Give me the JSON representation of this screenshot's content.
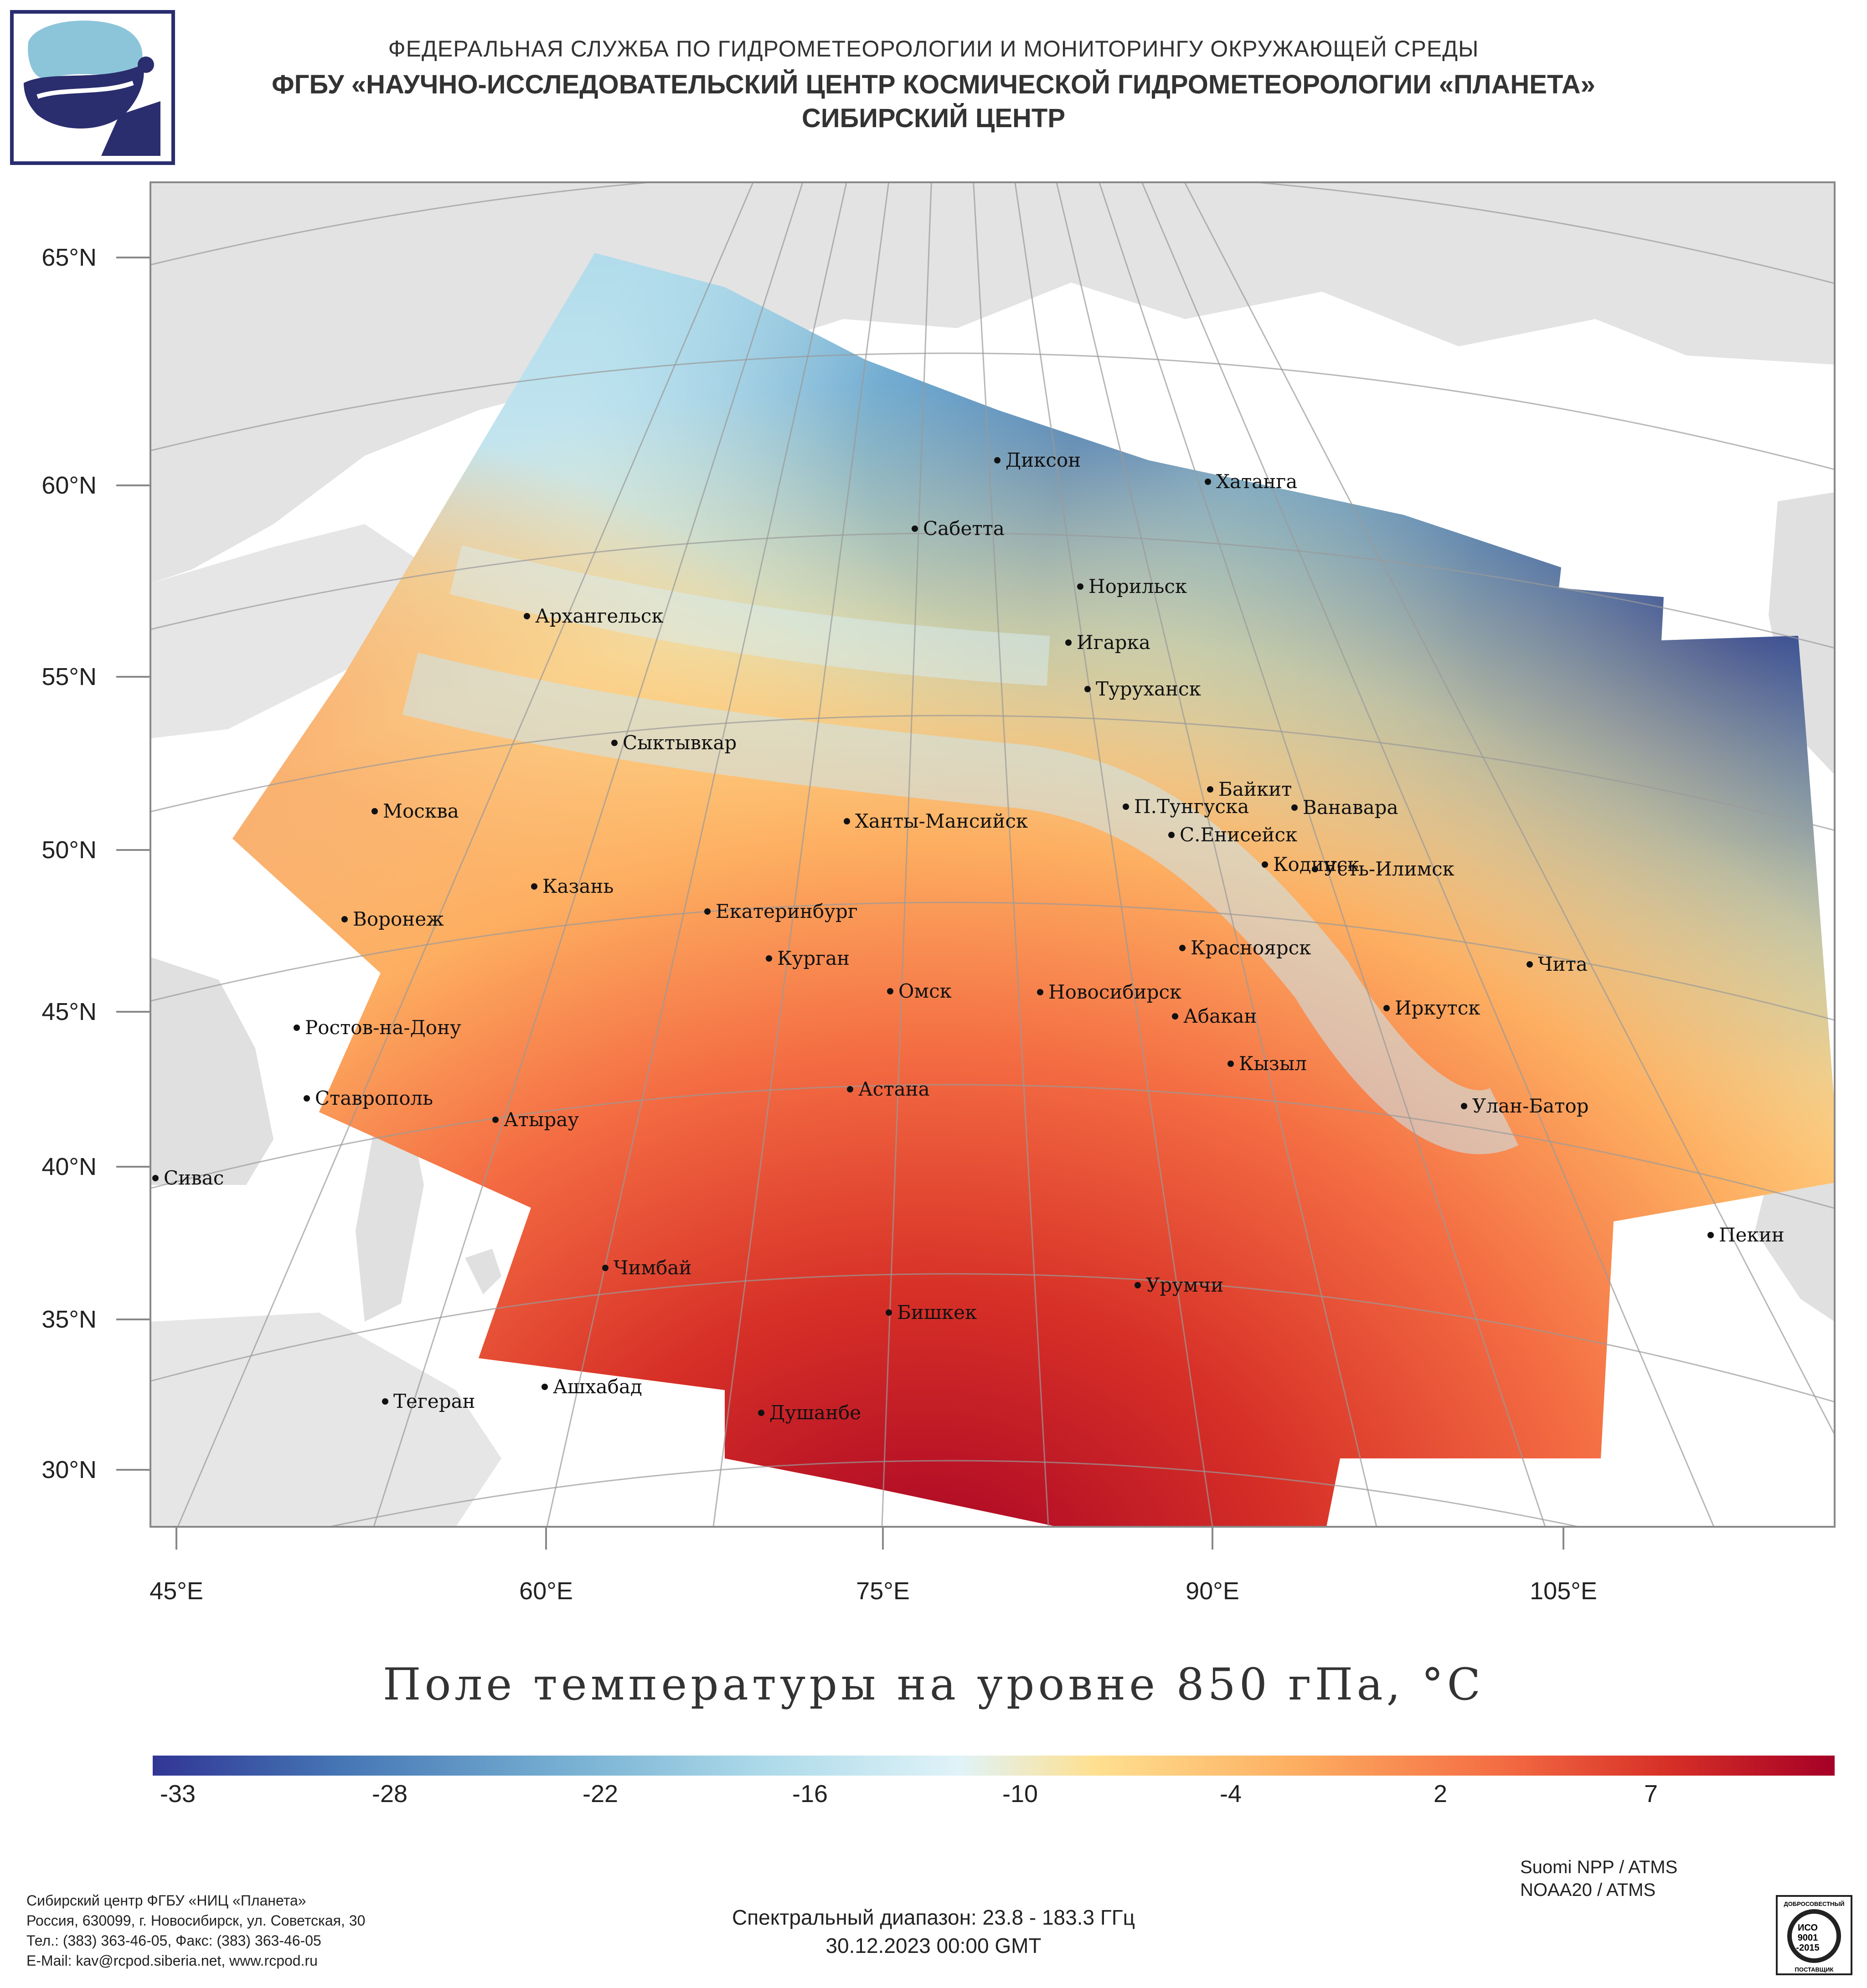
{
  "header": {
    "line1": "ФЕДЕРАЛЬНАЯ СЛУЖБА ПО ГИДРОМЕТЕОРОЛОГИИ И МОНИТОРИНГУ ОКРУЖАЮЩЕЙ СРЕДЫ",
    "line2": "ФГБУ «НАУЧНО-ИССЛЕДОВАТЕЛЬСКИЙ ЦЕНТР КОСМИЧЕСКОЙ ГИДРОМЕТЕОРОЛОГИИ «ПЛАНЕТА»",
    "line3": "СИБИРСКИЙ ЦЕНТР"
  },
  "logo": {
    "icon": "planeta-logo-icon"
  },
  "map": {
    "lat_labels": [
      "65°N",
      "60°N",
      "55°N",
      "50°N",
      "45°N",
      "40°N",
      "35°N",
      "30°N"
    ],
    "lon_labels": [
      "45°E",
      "60°E",
      "75°E",
      "90°E",
      "105°E"
    ],
    "cities": [
      {
        "name": "Диксон",
        "lon": 80.5,
        "lat": 73.5
      },
      {
        "name": "Хатанга",
        "lon": 102.5,
        "lat": 72.0
      },
      {
        "name": "Сабетта",
        "lon": 72.0,
        "lat": 71.3
      },
      {
        "name": "Норильск",
        "lon": 88.2,
        "lat": 69.3
      },
      {
        "name": "Игарка",
        "lon": 86.6,
        "lat": 67.5
      },
      {
        "name": "Туруханск",
        "lon": 87.9,
        "lat": 65.8
      },
      {
        "name": "Архангельск",
        "lon": 40.5,
        "lat": 64.5
      },
      {
        "name": "Сыктывкар",
        "lon": 50.8,
        "lat": 61.7
      },
      {
        "name": "Байкит",
        "lon": 96.4,
        "lat": 61.7
      },
      {
        "name": "П.Тунгуска",
        "lon": 93.5,
        "lat": 61.2
      },
      {
        "name": "Ванавара",
        "lon": 102.3,
        "lat": 60.3
      },
      {
        "name": "Москва",
        "lon": 37.6,
        "lat": 55.8
      },
      {
        "name": "Ханты-Мансийск",
        "lon": 69.0,
        "lat": 61.0
      },
      {
        "name": "С.Енисейск",
        "lon": 92.5,
        "lat": 58.5
      },
      {
        "name": "Кодинск",
        "lon": 99.2,
        "lat": 58.6
      },
      {
        "name": "Усть-Илимск",
        "lon": 102.7,
        "lat": 58.0
      },
      {
        "name": "Казань",
        "lon": 49.1,
        "lat": 55.8
      },
      {
        "name": "Екатеринбург",
        "lon": 60.6,
        "lat": 56.8
      },
      {
        "name": "Воронеж",
        "lon": 39.2,
        "lat": 51.7
      },
      {
        "name": "Красноярск",
        "lon": 92.9,
        "lat": 56.0
      },
      {
        "name": "Курган",
        "lon": 65.3,
        "lat": 55.4
      },
      {
        "name": "Чита",
        "lon": 113.5,
        "lat": 52.0
      },
      {
        "name": "Омск",
        "lon": 73.4,
        "lat": 55.0
      },
      {
        "name": "Новосибирск",
        "lon": 82.9,
        "lat": 55.0
      },
      {
        "name": "Абакан",
        "lon": 91.4,
        "lat": 53.7
      },
      {
        "name": "Иркутск",
        "lon": 104.3,
        "lat": 52.3
      },
      {
        "name": "Ростов-на-Дону",
        "lon": 39.7,
        "lat": 47.2
      },
      {
        "name": "Кызыл",
        "lon": 94.4,
        "lat": 51.7
      },
      {
        "name": "Ставрополь",
        "lon": 42.0,
        "lat": 45.0
      },
      {
        "name": "Астана",
        "lon": 71.4,
        "lat": 51.2
      },
      {
        "name": "Улан-Батор",
        "lon": 106.9,
        "lat": 47.9
      },
      {
        "name": "Атырау",
        "lon": 51.9,
        "lat": 47.1
      },
      {
        "name": "Сивас",
        "lon": 37.0,
        "lat": 39.7
      },
      {
        "name": "Пекин",
        "lon": 116.4,
        "lat": 39.9
      },
      {
        "name": "Чимбай",
        "lon": 59.8,
        "lat": 42.9
      },
      {
        "name": "Урумчи",
        "lon": 87.6,
        "lat": 43.8
      },
      {
        "name": "Бишкек",
        "lon": 74.6,
        "lat": 42.9
      },
      {
        "name": "Ашхабад",
        "lon": 58.4,
        "lat": 37.9
      },
      {
        "name": "Тегеран",
        "lon": 51.4,
        "lat": 35.7
      },
      {
        "name": "Душанбе",
        "lon": 68.8,
        "lat": 38.6
      }
    ]
  },
  "title": "Поле температуры на уровне 850 гПа, °C",
  "colorbar": {
    "ticks": [
      "-33",
      "-28",
      "-22",
      "-16",
      "-10",
      "-4",
      "2",
      "7"
    ],
    "colors": [
      "#313695",
      "#4575b4",
      "#74add1",
      "#abd9e9",
      "#e0f3f8",
      "#fee090",
      "#fdae61",
      "#f46d43",
      "#d73027",
      "#a50026"
    ]
  },
  "footer": {
    "address": [
      "Сибирский центр ФГБУ «НИЦ «Планета»",
      "Россия, 630099, г. Новосибирск, ул. Советская, 30",
      "Тел.: (383) 363-46-05, Факс: (383) 363-46-05",
      "E-Mail: kav@rcpod.siberia.net, www.rcpod.ru"
    ],
    "satellites": [
      "Suomi NPP / ATMS",
      "NOAA20 / ATMS"
    ],
    "spectral": "Спектральный диапазон: 23.8 - 183.3 ГГц",
    "datetime": "30.12.2023 00:00 GMT",
    "iso_badge": [
      "ДОБРОСОВЕСТНЫЙ",
      "ИСО",
      "9001",
      "-2015",
      "ПОСТАВЩИК"
    ]
  }
}
